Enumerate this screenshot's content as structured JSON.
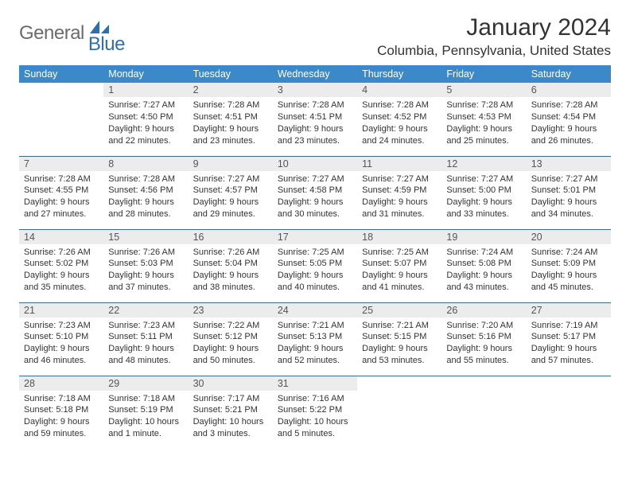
{
  "logo": {
    "gray": "General",
    "blue": "Blue"
  },
  "title": "January 2024",
  "location": "Columbia, Pennsylvania, United States",
  "header_bg": "#3b89c9",
  "header_fg": "#ffffff",
  "daynum_bg": "#ececec",
  "rule_color": "#3b6a8f",
  "weekdays": [
    "Sunday",
    "Monday",
    "Tuesday",
    "Wednesday",
    "Thursday",
    "Friday",
    "Saturday"
  ],
  "weeks": [
    [
      null,
      {
        "n": "1",
        "sr": "Sunrise: 7:27 AM",
        "ss": "Sunset: 4:50 PM",
        "d1": "Daylight: 9 hours",
        "d2": "and 22 minutes."
      },
      {
        "n": "2",
        "sr": "Sunrise: 7:28 AM",
        "ss": "Sunset: 4:51 PM",
        "d1": "Daylight: 9 hours",
        "d2": "and 23 minutes."
      },
      {
        "n": "3",
        "sr": "Sunrise: 7:28 AM",
        "ss": "Sunset: 4:51 PM",
        "d1": "Daylight: 9 hours",
        "d2": "and 23 minutes."
      },
      {
        "n": "4",
        "sr": "Sunrise: 7:28 AM",
        "ss": "Sunset: 4:52 PM",
        "d1": "Daylight: 9 hours",
        "d2": "and 24 minutes."
      },
      {
        "n": "5",
        "sr": "Sunrise: 7:28 AM",
        "ss": "Sunset: 4:53 PM",
        "d1": "Daylight: 9 hours",
        "d2": "and 25 minutes."
      },
      {
        "n": "6",
        "sr": "Sunrise: 7:28 AM",
        "ss": "Sunset: 4:54 PM",
        "d1": "Daylight: 9 hours",
        "d2": "and 26 minutes."
      }
    ],
    [
      {
        "n": "7",
        "sr": "Sunrise: 7:28 AM",
        "ss": "Sunset: 4:55 PM",
        "d1": "Daylight: 9 hours",
        "d2": "and 27 minutes."
      },
      {
        "n": "8",
        "sr": "Sunrise: 7:28 AM",
        "ss": "Sunset: 4:56 PM",
        "d1": "Daylight: 9 hours",
        "d2": "and 28 minutes."
      },
      {
        "n": "9",
        "sr": "Sunrise: 7:27 AM",
        "ss": "Sunset: 4:57 PM",
        "d1": "Daylight: 9 hours",
        "d2": "and 29 minutes."
      },
      {
        "n": "10",
        "sr": "Sunrise: 7:27 AM",
        "ss": "Sunset: 4:58 PM",
        "d1": "Daylight: 9 hours",
        "d2": "and 30 minutes."
      },
      {
        "n": "11",
        "sr": "Sunrise: 7:27 AM",
        "ss": "Sunset: 4:59 PM",
        "d1": "Daylight: 9 hours",
        "d2": "and 31 minutes."
      },
      {
        "n": "12",
        "sr": "Sunrise: 7:27 AM",
        "ss": "Sunset: 5:00 PM",
        "d1": "Daylight: 9 hours",
        "d2": "and 33 minutes."
      },
      {
        "n": "13",
        "sr": "Sunrise: 7:27 AM",
        "ss": "Sunset: 5:01 PM",
        "d1": "Daylight: 9 hours",
        "d2": "and 34 minutes."
      }
    ],
    [
      {
        "n": "14",
        "sr": "Sunrise: 7:26 AM",
        "ss": "Sunset: 5:02 PM",
        "d1": "Daylight: 9 hours",
        "d2": "and 35 minutes."
      },
      {
        "n": "15",
        "sr": "Sunrise: 7:26 AM",
        "ss": "Sunset: 5:03 PM",
        "d1": "Daylight: 9 hours",
        "d2": "and 37 minutes."
      },
      {
        "n": "16",
        "sr": "Sunrise: 7:26 AM",
        "ss": "Sunset: 5:04 PM",
        "d1": "Daylight: 9 hours",
        "d2": "and 38 minutes."
      },
      {
        "n": "17",
        "sr": "Sunrise: 7:25 AM",
        "ss": "Sunset: 5:05 PM",
        "d1": "Daylight: 9 hours",
        "d2": "and 40 minutes."
      },
      {
        "n": "18",
        "sr": "Sunrise: 7:25 AM",
        "ss": "Sunset: 5:07 PM",
        "d1": "Daylight: 9 hours",
        "d2": "and 41 minutes."
      },
      {
        "n": "19",
        "sr": "Sunrise: 7:24 AM",
        "ss": "Sunset: 5:08 PM",
        "d1": "Daylight: 9 hours",
        "d2": "and 43 minutes."
      },
      {
        "n": "20",
        "sr": "Sunrise: 7:24 AM",
        "ss": "Sunset: 5:09 PM",
        "d1": "Daylight: 9 hours",
        "d2": "and 45 minutes."
      }
    ],
    [
      {
        "n": "21",
        "sr": "Sunrise: 7:23 AM",
        "ss": "Sunset: 5:10 PM",
        "d1": "Daylight: 9 hours",
        "d2": "and 46 minutes."
      },
      {
        "n": "22",
        "sr": "Sunrise: 7:23 AM",
        "ss": "Sunset: 5:11 PM",
        "d1": "Daylight: 9 hours",
        "d2": "and 48 minutes."
      },
      {
        "n": "23",
        "sr": "Sunrise: 7:22 AM",
        "ss": "Sunset: 5:12 PM",
        "d1": "Daylight: 9 hours",
        "d2": "and 50 minutes."
      },
      {
        "n": "24",
        "sr": "Sunrise: 7:21 AM",
        "ss": "Sunset: 5:13 PM",
        "d1": "Daylight: 9 hours",
        "d2": "and 52 minutes."
      },
      {
        "n": "25",
        "sr": "Sunrise: 7:21 AM",
        "ss": "Sunset: 5:15 PM",
        "d1": "Daylight: 9 hours",
        "d2": "and 53 minutes."
      },
      {
        "n": "26",
        "sr": "Sunrise: 7:20 AM",
        "ss": "Sunset: 5:16 PM",
        "d1": "Daylight: 9 hours",
        "d2": "and 55 minutes."
      },
      {
        "n": "27",
        "sr": "Sunrise: 7:19 AM",
        "ss": "Sunset: 5:17 PM",
        "d1": "Daylight: 9 hours",
        "d2": "and 57 minutes."
      }
    ],
    [
      {
        "n": "28",
        "sr": "Sunrise: 7:18 AM",
        "ss": "Sunset: 5:18 PM",
        "d1": "Daylight: 9 hours",
        "d2": "and 59 minutes."
      },
      {
        "n": "29",
        "sr": "Sunrise: 7:18 AM",
        "ss": "Sunset: 5:19 PM",
        "d1": "Daylight: 10 hours",
        "d2": "and 1 minute."
      },
      {
        "n": "30",
        "sr": "Sunrise: 7:17 AM",
        "ss": "Sunset: 5:21 PM",
        "d1": "Daylight: 10 hours",
        "d2": "and 3 minutes."
      },
      {
        "n": "31",
        "sr": "Sunrise: 7:16 AM",
        "ss": "Sunset: 5:22 PM",
        "d1": "Daylight: 10 hours",
        "d2": "and 5 minutes."
      },
      null,
      null,
      null
    ]
  ]
}
